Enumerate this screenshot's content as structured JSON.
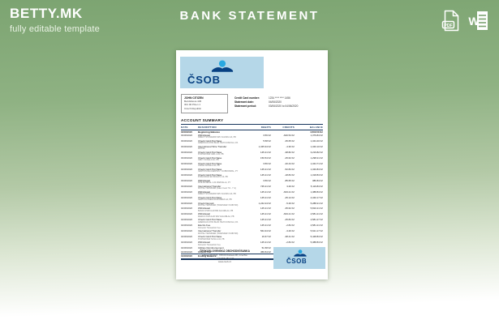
{
  "header": {
    "brand": "BETTY.MK",
    "tagline": "fully editable template",
    "title": "BANK STATEMENT",
    "icons": [
      {
        "name": "pdf-file-icon",
        "label": "PDF"
      },
      {
        "name": "word-file-icon",
        "label": "W"
      }
    ]
  },
  "colors": {
    "background_green": "#7ca471",
    "csob_light_blue": "#b5d7e8",
    "csob_navy": "#074082",
    "csob_cyan": "#29a8e0",
    "table_rule_navy": "#17365d"
  },
  "document": {
    "bank_logo_text": "ČSOB",
    "account_holder": {
      "name": "JOHN CITIZEN",
      "address_line1": "Bezdickova 445",
      "address_line2": "301 00 Plzen 1",
      "address_line3": "Czech Republic"
    },
    "statement_info": {
      "labels": {
        "card": "Credit Card number:",
        "date": "Statement date:",
        "period": "Statement period:"
      },
      "card_number": "1234 **** **** 1456",
      "statement_date": "04/06/2020",
      "statement_period": "03/06/2020 to 04/06/2020"
    },
    "summary_title": "ACCOUNT SUMMARY",
    "table": {
      "headers": [
        "DATE",
        "DESCRIPTION",
        "DEBITS",
        "CREDITS",
        "BALANCE"
      ],
      "rows": [
        {
          "date": "03/06/2020",
          "desc": "Beginning Balance",
          "detail": "",
          "debit": "",
          "credit": "",
          "balance": "4,500.50 Kč",
          "strong": true
        },
        {
          "date": "03/06/2020",
          "desc": "Withdrawal",
          "detail": "DIRECT STANDARD SRV KALNIKA 4A, PB",
          "debit": "3.56 Kč",
          "credit": "-640.54 Kč",
          "balance": "1,379.84 Kč"
        },
        {
          "date": "03/06/2020",
          "desc": "Check Card Purchase",
          "detail": "AMERICAN OHIO BLVD HIGH KOSKOLA, PA",
          "debit": "5.58 Kč",
          "credit": "-35.65 Kč",
          "balance": "1,344.40 Kč"
        },
        {
          "date": "03/06/2020",
          "desc": "International Wire Transfer",
          "detail": "PAYPAL",
          "debit": "1,345.34 Kč",
          "credit": "-4.30 Kč",
          "balance": "1,340.10 Kč"
        },
        {
          "date": "03/06/2020",
          "desc": "Check Card Purchase",
          "detail": "PUNTER BAR GIRL 4-34, PB",
          "debit": "145.21 Kč",
          "credit": "-38.82 Kč",
          "balance": "3,219.82 Kč"
        },
        {
          "date": "03/06/2020",
          "desc": "Check Card Purchase",
          "detail": "GIRLY SUNGLA 4A, PB",
          "debit": "150.54 Kč",
          "credit": "-25.62 Kč",
          "balance": "1,298.21 Kč"
        },
        {
          "date": "04/06/2020",
          "desc": "Check Card Purchase",
          "detail": "UNCLE SUNGLA 4A, PB",
          "debit": "3.56 Kč",
          "credit": "-40.44 Kč",
          "balance": "1,344.71 Kč"
        },
        {
          "date": "04/06/2020",
          "desc": "Check Card Purchase",
          "detail": "GESTION DE AGENTES Y SUBNORMAL, PY",
          "debit": "145.21 Kč",
          "credit": "-52.84 Kč",
          "balance": "1,340.84 Kč"
        },
        {
          "date": "04/06/2020",
          "desc": "Check Card Purchase",
          "detail": "PUBLICIDAD EN BOGOTA 14, PB",
          "debit": "145.21 Kč",
          "credit": "-18.84 Kč",
          "balance": "1,318.84 Kč"
        },
        {
          "date": "03/06/2020",
          "desc": "Withdrawal",
          "detail": "PIPE MUNDIAL 4-34 MARSALLA, PY",
          "debit": "3.56 Kč",
          "credit": "-85.65 Kč",
          "balance": "380.84 Kč"
        },
        {
          "date": "03/06/2020",
          "desc": "International Transfer",
          "detail": "PAYPAL TRANSFER (Fake Invest 7/2 - 7 m)",
          "debit": "745.21 Kč",
          "credit": "3.26 Kč",
          "balance": "5,119.84 Kč"
        },
        {
          "date": "04/06/2020",
          "desc": "Withdrawal",
          "detail": "DIRECT STANDARD SRV KALNIKA 4A, PB",
          "debit": "145.21 Kč",
          "credit": "-633.21 Kč",
          "balance": "1,388.84 Kč"
        },
        {
          "date": "04/06/2020",
          "desc": "Check Card Purchase",
          "detail": "GESTION AGENCIA BAJARES 4A, PB",
          "debit": "145.21 Kč",
          "credit": "-45.14 Kč",
          "balance": "4,340.17 Kč"
        },
        {
          "date": "04/06/2020",
          "desc": "Check Deposit",
          "detail": "PAYPAL TRANSFER (TRANSFER 7/2483729)",
          "debit": "1,242.24 Kč",
          "credit": "-5.26 Kč",
          "balance": "5,288.21 Kč"
        },
        {
          "date": "04/06/2020",
          "desc": "Withdrawal",
          "detail": "BANCO POPULAR BID AGUABLAA, PB",
          "debit": "145.21 Kč",
          "credit": "-35.62 Kč",
          "balance": "5,810.21 Kč"
        },
        {
          "date": "04/06/2020",
          "desc": "Withdrawal",
          "detail": "MARCO POPULAR SRV AGUABLAA, PB",
          "debit": "145.21 Kč",
          "credit": "-633.21 Kč",
          "balance": "4,581.21 Kč"
        },
        {
          "date": "04/06/2020",
          "desc": "Check Card Purchase",
          "detail": "AMERICAN OHIO BLVD HIGH KOSKOLA, PA",
          "debit": "145.21 Kč",
          "credit": "-45.84 Kč",
          "balance": "4,581.27 Kč"
        },
        {
          "date": "04/06/2020",
          "desc": "Electra Fee",
          "detail": "Domestic Transaction Fee",
          "debit": "145.21 Kč",
          "credit": "-2.84 Kč",
          "balance": "4,581.21 Kč"
        },
        {
          "date": "04/06/2020",
          "desc": "International Transfer",
          "detail": "PAYPAL TRANSFER (TRANSFER 7/2483729)",
          "debit": "564.34 Kč",
          "credit": "-3.26 Kč",
          "balance": "5,621.17 Kč"
        },
        {
          "date": "04/06/2020",
          "desc": "Check Card Purchase",
          "detail": "PUNTER BAR SUSA 4-34, PB",
          "debit": "16.67 Kč",
          "credit": "-38.41 Kč",
          "balance": "5,448.84 Kč"
        },
        {
          "date": "04/06/2020",
          "desc": "Withdrawal",
          "detail": "Domestic Transaction Fee",
          "debit": "145.21 Kč",
          "credit": "-2.84 Kč",
          "balance": "5,388.84 Kč"
        },
        {
          "date": "04/06/2020",
          "desc": "Utilities Reimbursement",
          "detail": "",
          "debit": "51.58 Kč",
          "credit": "-4.35 Kč",
          "balance": "5,820.75 Kč"
        },
        {
          "date": "04/06/2020",
          "desc": "Deposit Fee",
          "detail": "",
          "debit": "456.54 Kč",
          "credit": "5.55 Kč",
          "balance": "5,567.16 Kč"
        },
        {
          "date": "04/06/2020",
          "desc": "Ending Balance",
          "detail": "",
          "debit": "",
          "credit": "",
          "balance": "4,807.50 Kč",
          "strong": true,
          "last": true
        }
      ]
    },
    "footer": {
      "bank_name": "ČESKOSLOVENSKÁ OBCHODNÍ BANKA",
      "address": "Hlavní 7723/47, 708 00 Ostrava 08, Czechia",
      "phone": "+420 595 782 477",
      "website": "www.csob.cz"
    }
  }
}
